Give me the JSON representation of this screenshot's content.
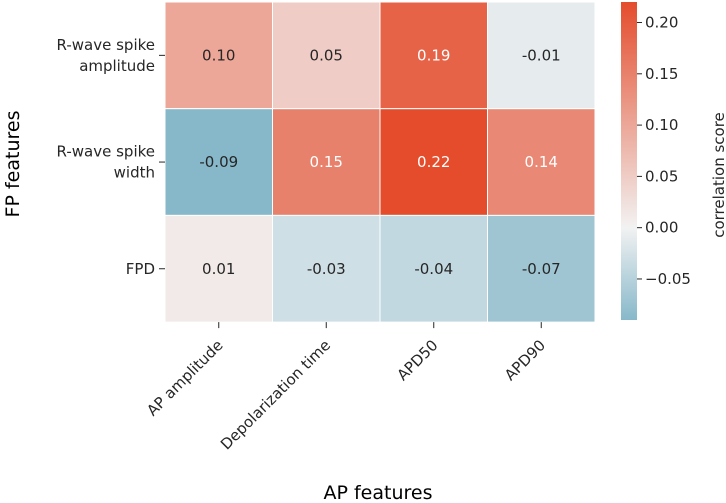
{
  "chart_data": {
    "type": "heatmap",
    "title": "",
    "xlabel": "AP features",
    "ylabel": "FP features",
    "x_categories": [
      "AP amplitude",
      "Depolarization time",
      "APD50",
      "APD90"
    ],
    "y_categories": [
      [
        "R-wave spike",
        "amplitude"
      ],
      [
        "R-wave spike",
        "width"
      ],
      [
        "FPD"
      ]
    ],
    "values": [
      [
        0.1,
        0.05,
        0.19,
        -0.01
      ],
      [
        -0.09,
        0.15,
        0.22,
        0.14
      ],
      [
        0.01,
        -0.03,
        -0.04,
        -0.07
      ]
    ],
    "labels": [
      [
        "0.10",
        "0.05",
        "0.19",
        "-0.01"
      ],
      [
        "-0.09",
        "0.15",
        "0.22",
        "0.14"
      ],
      [
        "0.01",
        "-0.03",
        "-0.04",
        "-0.07"
      ]
    ],
    "colorbar": {
      "label": "correlation score",
      "vmin": -0.09,
      "vmax": 0.22,
      "center": 0,
      "ticks": [
        0.2,
        0.15,
        0.1,
        0.05,
        0.0,
        -0.05
      ],
      "tick_labels": [
        "0.20",
        "0.15",
        "0.10",
        "0.05",
        "0.00",
        "−0.05"
      ]
    },
    "colors": {
      "negative": "#87b8ca",
      "center": "#f2f2f2",
      "positive": "#e44c2c",
      "text_dark": "#262626",
      "text_light": "#ffffff"
    }
  }
}
